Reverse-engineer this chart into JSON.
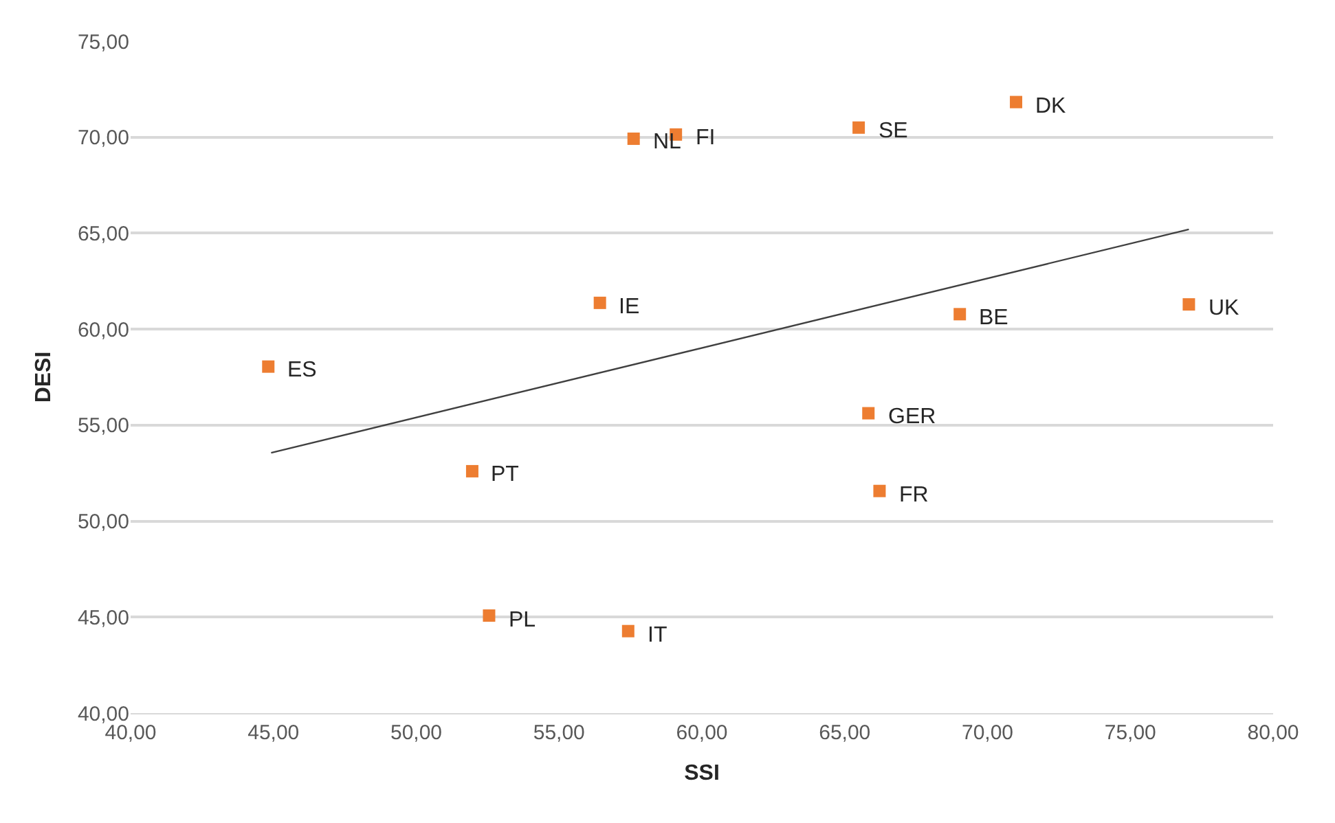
{
  "chart_data": {
    "type": "scatter",
    "xlabel": "SSI",
    "ylabel": "DESI",
    "x": [
      44.82,
      57.61,
      59.09,
      65.49,
      71.0,
      56.43,
      69.03,
      77.05,
      65.83,
      51.96,
      66.22,
      52.55,
      57.42
    ],
    "series": [
      {
        "color": "#ed7d31",
        "marker": "square",
        "values": [
          58.05,
          69.92,
          70.14,
          70.5,
          71.83,
          61.37,
          60.78,
          61.29,
          55.62,
          52.6,
          51.57,
          45.08,
          44.27
        ]
      },
      {
        "type": "line",
        "color": "#404040",
        "x": [
          44.92,
          77.05
        ],
        "values": [
          53.56,
          65.2
        ]
      }
    ],
    "annotations": [
      {
        "text": "ES",
        "x": 44.82,
        "y": 58.05
      },
      {
        "text": "NL",
        "x": 57.61,
        "y": 69.92
      },
      {
        "text": "FI",
        "x": 59.09,
        "y": 70.14
      },
      {
        "text": "SE",
        "x": 65.49,
        "y": 70.5
      },
      {
        "text": "DK",
        "x": 71.0,
        "y": 71.83
      },
      {
        "text": "IE",
        "x": 56.43,
        "y": 61.37
      },
      {
        "text": "BE",
        "x": 69.03,
        "y": 60.78
      },
      {
        "text": "UK",
        "x": 77.05,
        "y": 61.29
      },
      {
        "text": "GER",
        "x": 65.83,
        "y": 55.62
      },
      {
        "text": "PT",
        "x": 51.96,
        "y": 52.6
      },
      {
        "text": "FR",
        "x": 66.22,
        "y": 51.57
      },
      {
        "text": "PL",
        "x": 52.55,
        "y": 45.08
      },
      {
        "text": "IT",
        "x": 57.42,
        "y": 44.27
      }
    ],
    "xlim": [
      40,
      80
    ],
    "xticks": [
      {
        "value": 40,
        "label": "40,00"
      },
      {
        "value": 45,
        "label": "45,00"
      },
      {
        "value": 50,
        "label": "50,00"
      },
      {
        "value": 55,
        "label": "55,00"
      },
      {
        "value": 60,
        "label": "60,00"
      },
      {
        "value": 65,
        "label": "65,00"
      },
      {
        "value": 70,
        "label": "70,00"
      },
      {
        "value": 75,
        "label": "75,00"
      },
      {
        "value": 80,
        "label": "80,00"
      }
    ],
    "ylim": [
      40,
      75
    ],
    "yticks": [
      {
        "value": 40,
        "label": "40,00"
      },
      {
        "value": 45,
        "label": "45,00"
      },
      {
        "value": 50,
        "label": "50,00"
      },
      {
        "value": 55,
        "label": "55,00"
      },
      {
        "value": 60,
        "label": "60,00"
      },
      {
        "value": 65,
        "label": "65,00"
      },
      {
        "value": 70,
        "label": "70,00"
      },
      {
        "value": 75,
        "label": "75,00"
      }
    ],
    "grid": "y"
  }
}
